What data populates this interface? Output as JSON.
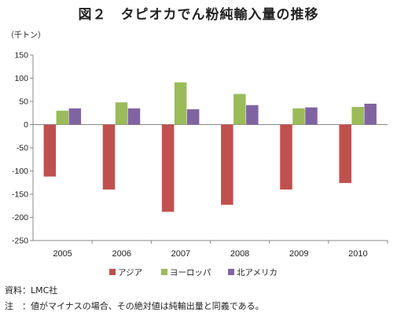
{
  "title": "図２　タピオカでん粉純輸入量の推移",
  "unit_label": "（千トン）",
  "chart_data": {
    "type": "bar",
    "categories": [
      "2005",
      "2006",
      "2007",
      "2008",
      "2009",
      "2010"
    ],
    "series": [
      {
        "name": "アジア",
        "color": "#c0504d",
        "values": [
          -112,
          -140,
          -188,
          -173,
          -140,
          -126
        ]
      },
      {
        "name": "ヨーロッパ",
        "color": "#9bbb59",
        "values": [
          30,
          48,
          91,
          66,
          35,
          38
        ]
      },
      {
        "name": "北アメリカ",
        "color": "#8064a2",
        "values": [
          35,
          35,
          33,
          42,
          37,
          45
        ]
      }
    ],
    "ylim": [
      -250,
      150
    ],
    "yticks": [
      150,
      100,
      50,
      0,
      -50,
      -100,
      -150,
      -200,
      -250
    ],
    "grid": false,
    "legend": "bottom"
  },
  "source": "資料：LMC社",
  "note": "注　：値がマイナスの場合、その絶対値は純輸出量と同義である。"
}
